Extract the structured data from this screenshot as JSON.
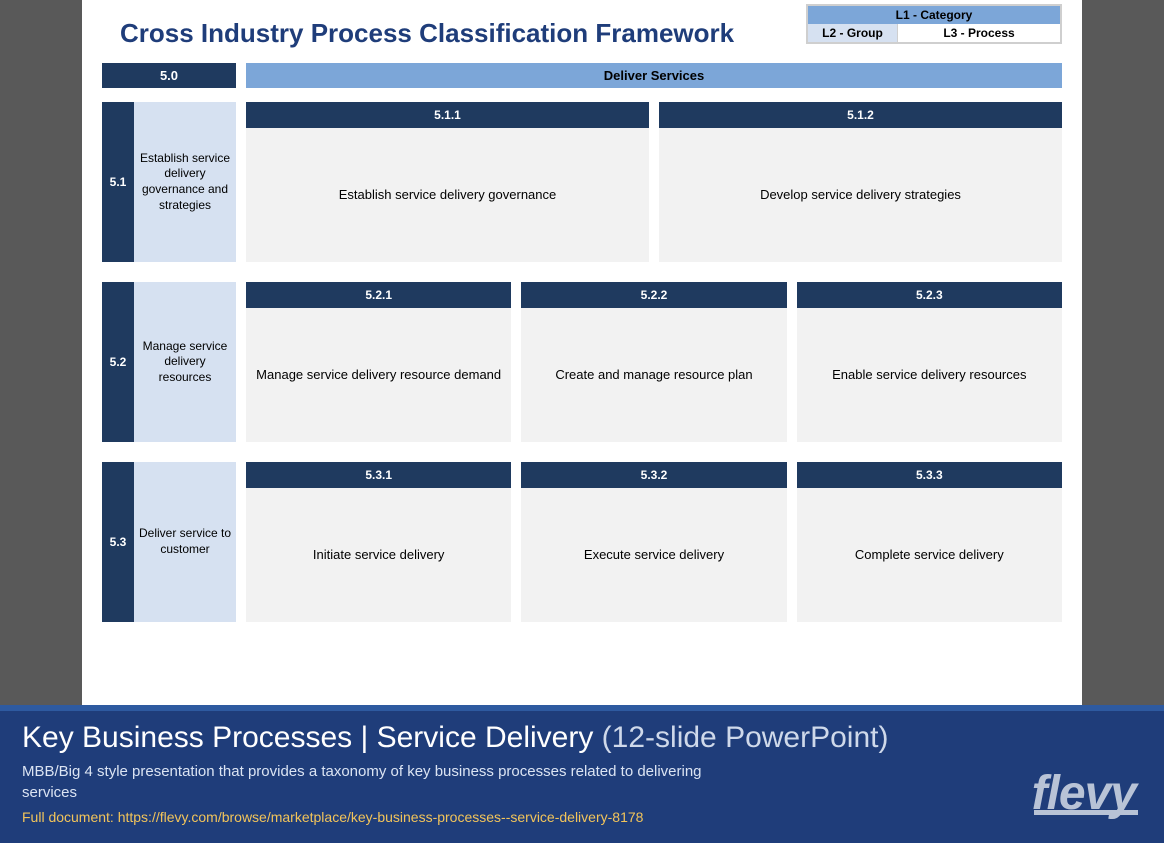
{
  "slide": {
    "title": "Cross Industry Process Classification Framework",
    "legend": {
      "l1": "L1 - Category",
      "l2": "L2 - Group",
      "l3": "L3 - Process"
    },
    "category": {
      "code": "5.0",
      "label": "Deliver Services"
    },
    "groups": [
      {
        "code": "5.1",
        "label": "Establish service delivery governance and strategies",
        "processes": [
          {
            "code": "5.1.1",
            "label": "Establish service delivery governance"
          },
          {
            "code": "5.1.2",
            "label": "Develop service delivery strategies"
          }
        ]
      },
      {
        "code": "5.2",
        "label": "Manage service delivery resources",
        "processes": [
          {
            "code": "5.2.1",
            "label": "Manage service delivery resource demand"
          },
          {
            "code": "5.2.2",
            "label": "Create and manage resource plan"
          },
          {
            "code": "5.2.3",
            "label": "Enable service delivery resources"
          }
        ]
      },
      {
        "code": "5.3",
        "label": "Deliver service to customer",
        "processes": [
          {
            "code": "5.3.1",
            "label": "Initiate service delivery"
          },
          {
            "code": "5.3.2",
            "label": "Execute service delivery"
          },
          {
            "code": "5.3.3",
            "label": "Complete service delivery"
          }
        ]
      }
    ]
  },
  "banner": {
    "title_main": "Key Business Processes | Service Delivery",
    "title_sub": " (12-slide PowerPoint)",
    "description": "MBB/Big 4 style presentation that provides a taxonomy of key business processes related to delivering services",
    "link_label": "Full document: https://flevy.com/browse/marketplace/key-business-processes--service-delivery-8178",
    "logo_text": "flevy"
  },
  "colors": {
    "page_bg": "#595959",
    "slide_bg": "#ffffff",
    "title_color": "#1f3d7a",
    "dark_blue": "#1f3a5f",
    "mid_blue": "#7ca6d8",
    "light_blue": "#d6e1f1",
    "process_bg": "#f2f2f2",
    "banner_bg": "#1f3d7a",
    "banner_border": "#2e5aa0",
    "link_color": "#f2c45a",
    "logo_color": "#b8c3d6"
  }
}
